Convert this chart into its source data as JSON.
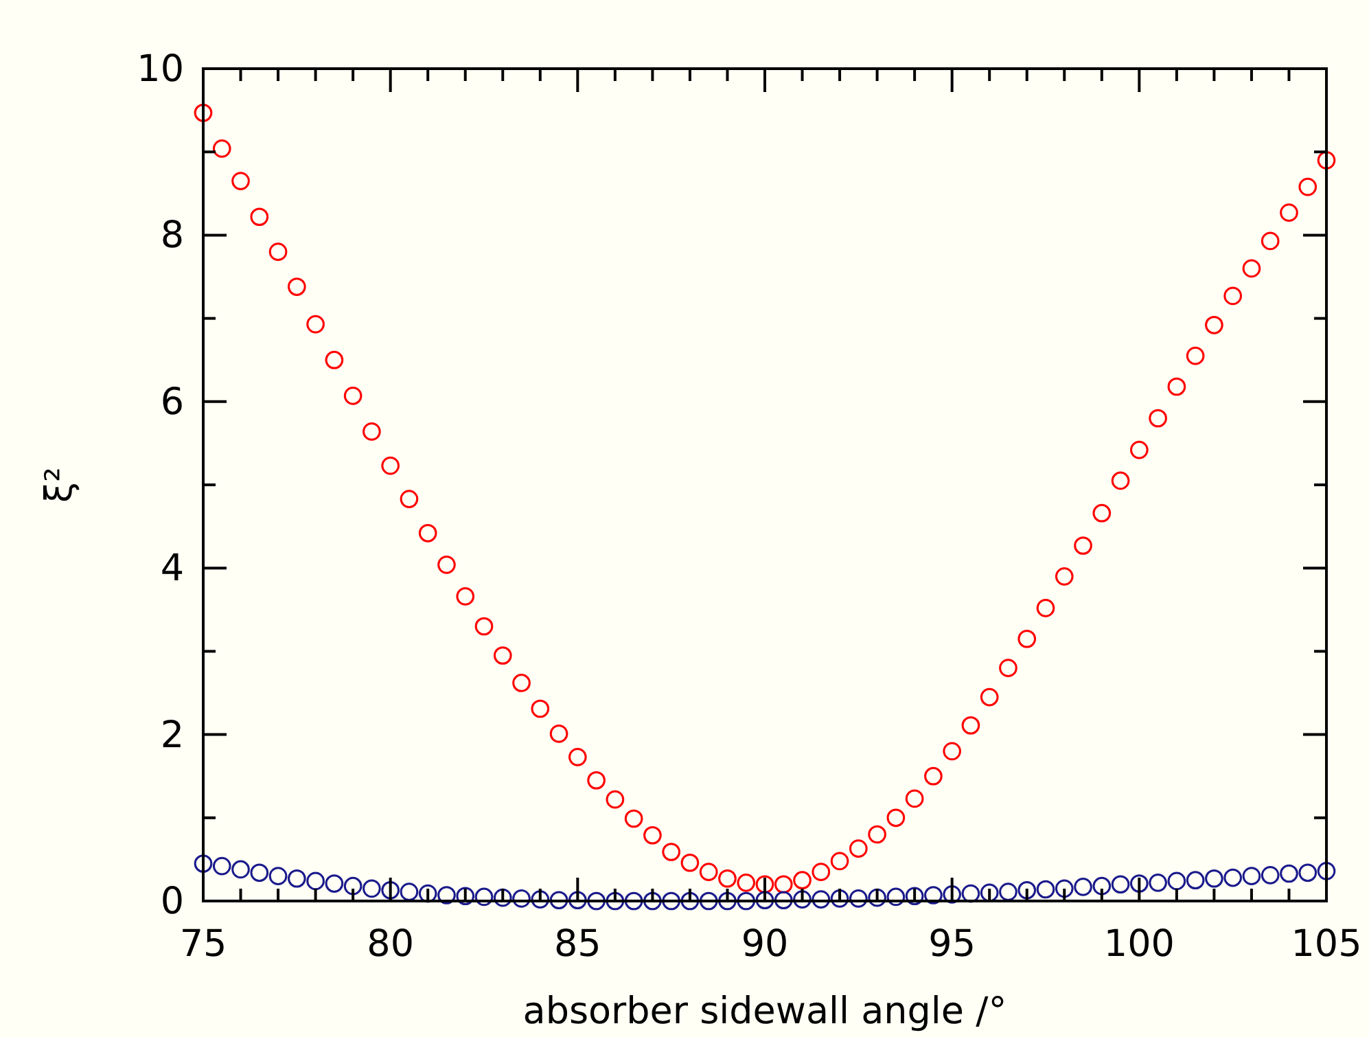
{
  "chart_data": {
    "type": "scatter",
    "xlabel": "absorber sidewall angle /°",
    "ylabel": "ξ²",
    "marker": "circle",
    "grid": false,
    "x": [
      75,
      75.5,
      76,
      76.5,
      77,
      77.5,
      78,
      78.5,
      79,
      79.5,
      80,
      80.5,
      81,
      81.5,
      82,
      82.5,
      83,
      83.5,
      84,
      84.5,
      85,
      85.5,
      86,
      86.5,
      87,
      87.5,
      88,
      88.5,
      89,
      89.5,
      90,
      90.5,
      91,
      91.5,
      92,
      92.5,
      93,
      93.5,
      94,
      94.5,
      95,
      95.5,
      96,
      96.5,
      97,
      97.5,
      98,
      98.5,
      99,
      99.5,
      100,
      100.5,
      101,
      101.5,
      102,
      102.5,
      103,
      103.5,
      104,
      104.5,
      105
    ],
    "xlim": [
      75,
      105
    ],
    "xticks": [
      75,
      {
        "value": 76,
        "label": null
      },
      {
        "value": 77,
        "label": null
      },
      {
        "value": 78,
        "label": null
      },
      {
        "value": 79,
        "label": null
      },
      80,
      {
        "value": 81,
        "label": null
      },
      {
        "value": 82,
        "label": null
      },
      {
        "value": 83,
        "label": null
      },
      {
        "value": 84,
        "label": null
      },
      85,
      {
        "value": 86,
        "label": null
      },
      {
        "value": 87,
        "label": null
      },
      {
        "value": 88,
        "label": null
      },
      {
        "value": 89,
        "label": null
      },
      90,
      {
        "value": 91,
        "label": null
      },
      {
        "value": 92,
        "label": null
      },
      {
        "value": 93,
        "label": null
      },
      {
        "value": 94,
        "label": null
      },
      95,
      {
        "value": 96,
        "label": null
      },
      {
        "value": 97,
        "label": null
      },
      {
        "value": 98,
        "label": null
      },
      {
        "value": 99,
        "label": null
      },
      100,
      {
        "value": 101,
        "label": null
      },
      {
        "value": 102,
        "label": null
      },
      {
        "value": 103,
        "label": null
      },
      {
        "value": 104,
        "label": null
      },
      105
    ],
    "ylim": [
      0,
      10
    ],
    "yticks": [
      0,
      {
        "value": 1,
        "label": null
      },
      2,
      {
        "value": 3,
        "label": null
      },
      4,
      {
        "value": 5,
        "label": null
      },
      6,
      {
        "value": 7,
        "label": null
      },
      8,
      {
        "value": 9,
        "label": null
      },
      10
    ],
    "series": [
      {
        "color": "#ff0000",
        "values": [
          9.47,
          9.04,
          8.65,
          8.22,
          7.8,
          7.38,
          6.93,
          6.5,
          6.07,
          5.64,
          5.23,
          4.83,
          4.42,
          4.04,
          3.66,
          3.3,
          2.95,
          2.62,
          2.31,
          2.01,
          1.73,
          1.45,
          1.22,
          0.99,
          0.79,
          0.59,
          0.46,
          0.35,
          0.27,
          0.22,
          0.2,
          0.2,
          0.25,
          0.35,
          0.48,
          0.63,
          0.8,
          1.0,
          1.23,
          1.5,
          1.8,
          2.11,
          2.45,
          2.8,
          3.15,
          3.52,
          3.9,
          4.27,
          4.66,
          5.05,
          5.42,
          5.8,
          6.18,
          6.55,
          6.92,
          7.27,
          7.6,
          7.93,
          8.27,
          8.58,
          8.9
        ]
      },
      {
        "color": "#1a1a8c",
        "values": [
          0.45,
          0.42,
          0.38,
          0.34,
          0.3,
          0.27,
          0.24,
          0.21,
          0.18,
          0.15,
          0.13,
          0.11,
          0.09,
          0.07,
          0.06,
          0.05,
          0.04,
          0.03,
          0.02,
          0.01,
          0.01,
          0.0,
          0.0,
          0.0,
          0.0,
          0.0,
          0.0,
          0.0,
          0.0,
          0.0,
          0.01,
          0.01,
          0.02,
          0.02,
          0.03,
          0.03,
          0.04,
          0.05,
          0.06,
          0.07,
          0.08,
          0.09,
          0.1,
          0.11,
          0.13,
          0.14,
          0.15,
          0.17,
          0.18,
          0.2,
          0.21,
          0.22,
          0.24,
          0.25,
          0.27,
          0.28,
          0.3,
          0.31,
          0.33,
          0.34,
          0.36
        ]
      }
    ]
  }
}
